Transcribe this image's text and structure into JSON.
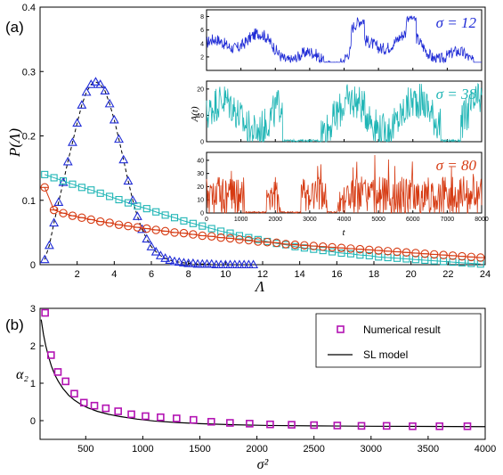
{
  "chart_data": [
    {
      "panel_label": "(a)",
      "type": "line",
      "ylabel": "P(Λ)",
      "xlabel": "Λ",
      "xlim": [
        0,
        24
      ],
      "ylim": [
        0,
        0.4
      ],
      "xticks": [
        2,
        4,
        6,
        8,
        10,
        12,
        14,
        16,
        18,
        20,
        22,
        24
      ],
      "yticks": [
        0,
        0.1,
        0.2,
        0.3,
        0.4
      ],
      "grid": false,
      "colors": {
        "sigma12": "#1f2bd6",
        "sigma38": "#1fb5b5",
        "sigma80": "#d63a12"
      },
      "series": [
        {
          "key": "sigma12",
          "marker": "triangle",
          "x": [
            0.25,
            0.5,
            0.75,
            1.0,
            1.25,
            1.5,
            1.75,
            2.0,
            2.25,
            2.5,
            2.75,
            3.0,
            3.25,
            3.5,
            3.75,
            4.0,
            4.25,
            4.5,
            4.75,
            5.0,
            5.25,
            5.5,
            5.75,
            6.0,
            6.25,
            6.5,
            6.75,
            7.0,
            7.25,
            7.5,
            7.75,
            8.0,
            8.25,
            8.5,
            8.75,
            9.0,
            9.25,
            9.5,
            9.75,
            10.0,
            10.25,
            10.5,
            10.75,
            11.0,
            11.25,
            11.5
          ],
          "y": [
            0.008,
            0.03,
            0.065,
            0.097,
            0.128,
            0.16,
            0.19,
            0.22,
            0.248,
            0.268,
            0.28,
            0.284,
            0.28,
            0.27,
            0.25,
            0.225,
            0.195,
            0.163,
            0.13,
            0.1,
            0.075,
            0.055,
            0.04,
            0.028,
            0.02,
            0.014,
            0.01,
            0.007,
            0.005,
            0.004,
            0.003,
            0.002,
            0.002,
            0.001,
            0.001,
            0.001,
            0.001,
            0,
            0,
            0,
            0,
            0,
            0,
            0,
            0,
            0
          ]
        },
        {
          "key": "sigma38",
          "marker": "square",
          "x": [
            0.25,
            0.75,
            1.25,
            1.75,
            2.25,
            2.75,
            3.25,
            3.75,
            4.25,
            4.75,
            5.25,
            5.75,
            6.25,
            6.75,
            7.25,
            7.75,
            8.25,
            8.75,
            9.25,
            9.75,
            10.25,
            10.75,
            11.25,
            11.75,
            12.25,
            12.75,
            13.25,
            13.75,
            14.25,
            14.75,
            15.25,
            15.75,
            16.25,
            16.75,
            17.25,
            17.75,
            18.25,
            18.75,
            19.25,
            19.75,
            20.25,
            20.75,
            21.25,
            21.75,
            22.25,
            22.75,
            23.25,
            23.75
          ],
          "y": [
            0.14,
            0.135,
            0.13,
            0.125,
            0.12,
            0.116,
            0.111,
            0.106,
            0.101,
            0.096,
            0.091,
            0.087,
            0.082,
            0.077,
            0.073,
            0.068,
            0.064,
            0.06,
            0.056,
            0.052,
            0.049,
            0.045,
            0.042,
            0.039,
            0.036,
            0.033,
            0.031,
            0.028,
            0.026,
            0.024,
            0.022,
            0.02,
            0.018,
            0.017,
            0.015,
            0.014,
            0.012,
            0.011,
            0.01,
            0.009,
            0.008,
            0.007,
            0.006,
            0.005,
            0.004,
            0.003,
            0.002,
            0.001
          ]
        },
        {
          "key": "sigma80",
          "marker": "circle",
          "x": [
            0.25,
            0.75,
            1.25,
            1.75,
            2.25,
            2.75,
            3.25,
            3.75,
            4.25,
            4.75,
            5.25,
            5.75,
            6.25,
            6.75,
            7.25,
            7.75,
            8.25,
            8.75,
            9.25,
            9.75,
            10.25,
            10.75,
            11.25,
            11.75,
            12.25,
            12.75,
            13.25,
            13.75,
            14.25,
            14.75,
            15.25,
            15.75,
            16.25,
            16.75,
            17.25,
            17.75,
            18.25,
            18.75,
            19.25,
            19.75,
            20.25,
            20.75,
            21.25,
            21.75,
            22.25,
            22.75,
            23.25,
            23.75
          ],
          "y": [
            0.12,
            0.085,
            0.08,
            0.076,
            0.073,
            0.07,
            0.067,
            0.065,
            0.062,
            0.06,
            0.058,
            0.056,
            0.054,
            0.052,
            0.05,
            0.049,
            0.047,
            0.045,
            0.044,
            0.042,
            0.041,
            0.039,
            0.038,
            0.036,
            0.035,
            0.034,
            0.032,
            0.031,
            0.03,
            0.029,
            0.028,
            0.027,
            0.026,
            0.025,
            0.024,
            0.023,
            0.022,
            0.021,
            0.02,
            0.019,
            0.018,
            0.017,
            0.016,
            0.015,
            0.014,
            0.013,
            0.012,
            0.011
          ]
        }
      ],
      "inset": {
        "ylabel": "A(t)",
        "xlabel": "t",
        "xlim": [
          0,
          8000
        ],
        "xticks": [
          0,
          1000,
          2000,
          3000,
          4000,
          5000,
          6000,
          7000,
          8000
        ],
        "panels": [
          {
            "key": "sigma12",
            "label": "σ = 12",
            "ylim": [
              0,
              9
            ],
            "yticks": [
              2,
              4,
              6,
              8
            ]
          },
          {
            "key": "sigma38",
            "label": "σ = 38",
            "ylim": [
              0,
              23
            ],
            "yticks": [
              0,
              10,
              20
            ]
          },
          {
            "key": "sigma80",
            "label": "σ = 80",
            "ylim": [
              0,
              46
            ],
            "yticks": [
              0,
              10,
              20,
              30,
              40
            ]
          }
        ]
      }
    },
    {
      "panel_label": "(b)",
      "type": "scatter",
      "ylabel": "α₂",
      "xlabel": "σ²",
      "xlim": [
        100,
        4000
      ],
      "ylim": [
        -0.5,
        3
      ],
      "xticks": [
        500,
        1000,
        1500,
        2000,
        2500,
        3000,
        3500,
        4000
      ],
      "yticks": [
        0,
        1,
        2,
        3
      ],
      "grid": false,
      "legend_position": "top-right",
      "legend": [
        "Numerical result",
        "SL model"
      ],
      "colors": {
        "numerical": "#b313b3",
        "model": "#000000"
      },
      "series": [
        {
          "name": "Numerical result",
          "marker": "square",
          "x": [
            144,
            196,
            256,
            324,
            400,
            484,
            576,
            676,
            784,
            900,
            1024,
            1156,
            1296,
            1444,
            1600,
            1764,
            1936,
            2116,
            2304,
            2500,
            2704,
            2916,
            3136,
            3364,
            3600,
            3844
          ],
          "y": [
            2.88,
            1.75,
            1.3,
            1.05,
            0.72,
            0.48,
            0.4,
            0.33,
            0.25,
            0.17,
            0.12,
            0.09,
            0.06,
            0.02,
            -0.03,
            -0.06,
            -0.08,
            -0.1,
            -0.11,
            -0.12,
            -0.13,
            -0.14,
            -0.14,
            -0.15,
            -0.15,
            -0.15
          ]
        },
        {
          "name": "SL model",
          "marker": "line",
          "x": [
            110,
            130,
            150,
            175,
            200,
            230,
            260,
            300,
            350,
            400,
            460,
            520,
            600,
            700,
            800,
            950,
            1100,
            1300,
            1500,
            1800,
            2100,
            2500,
            3000,
            3500,
            4000
          ],
          "y": [
            2.7,
            2.3,
            2.0,
            1.7,
            1.45,
            1.22,
            1.05,
            0.86,
            0.68,
            0.55,
            0.43,
            0.34,
            0.25,
            0.17,
            0.11,
            0.04,
            -0.01,
            -0.05,
            -0.08,
            -0.11,
            -0.13,
            -0.14,
            -0.15,
            -0.155,
            -0.16
          ]
        }
      ]
    }
  ]
}
